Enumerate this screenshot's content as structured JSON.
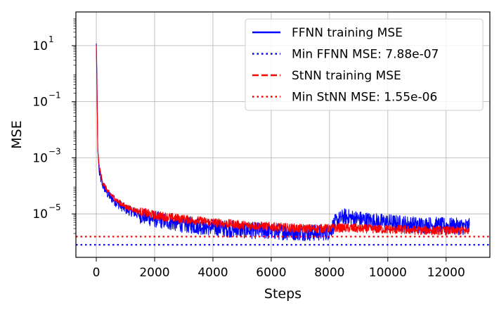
{
  "chart_data": {
    "type": "line",
    "xlabel": "Steps",
    "ylabel": "MSE",
    "xlim": [
      -700,
      13500
    ],
    "ylim_log10": [
      -6.55,
      2.2
    ],
    "y_scale": "log",
    "grid": true,
    "legend_placement": "top-right",
    "x_ticks": [
      {
        "value": 0,
        "label": "0"
      },
      {
        "value": 2000,
        "label": "2000"
      },
      {
        "value": 4000,
        "label": "4000"
      },
      {
        "value": 6000,
        "label": "6000"
      },
      {
        "value": 8000,
        "label": "8000"
      },
      {
        "value": 10000,
        "label": "10000"
      },
      {
        "value": 12000,
        "label": "12000"
      }
    ],
    "y_ticks": [
      {
        "log10": 1,
        "base": "10",
        "exp": "1"
      },
      {
        "log10": -1,
        "base": "10",
        "exp": "−1"
      },
      {
        "log10": -3,
        "base": "10",
        "exp": "−3"
      },
      {
        "log10": -5,
        "base": "10",
        "exp": "−5"
      }
    ],
    "series": [
      {
        "name": "FFNN training MSE",
        "color": "#0000ff",
        "style": "solid",
        "points": [
          [
            0,
            12
          ],
          [
            20,
            1
          ],
          [
            50,
            0.002
          ],
          [
            100,
            0.0003
          ],
          [
            200,
            0.00012
          ],
          [
            400,
            5e-05
          ],
          [
            700,
            2.5e-05
          ],
          [
            1000,
            1.5e-05
          ],
          [
            1500,
            9e-06
          ],
          [
            2000,
            6.5e-06
          ],
          [
            3000,
            4.2e-06
          ],
          [
            4000,
            3.2e-06
          ],
          [
            5000,
            2.7e-06
          ],
          [
            6000,
            2.4e-06
          ],
          [
            7000,
            2.2e-06
          ],
          [
            7500,
            2.1e-06
          ],
          [
            8000,
            2.3e-06
          ],
          [
            8200,
            5e-06
          ],
          [
            8500,
            8e-06
          ],
          [
            9000,
            6.5e-06
          ],
          [
            9500,
            5.5e-06
          ],
          [
            10000,
            5e-06
          ],
          [
            10500,
            4.5e-06
          ],
          [
            11000,
            4e-06
          ],
          [
            11500,
            4e-06
          ],
          [
            12000,
            3.7e-06
          ],
          [
            12800,
            3.5e-06
          ]
        ],
        "noise_log10": 0.3
      },
      {
        "name": "StNN training MSE",
        "color": "#ff0000",
        "style": "dashed",
        "points": [
          [
            0,
            10
          ],
          [
            20,
            0.5
          ],
          [
            50,
            0.002
          ],
          [
            100,
            0.0005
          ],
          [
            200,
            0.00015
          ],
          [
            400,
            6e-05
          ],
          [
            700,
            3e-05
          ],
          [
            1000,
            1.8e-05
          ],
          [
            1500,
            1.2e-05
          ],
          [
            2000,
            9e-06
          ],
          [
            3000,
            6.5e-06
          ],
          [
            4000,
            5e-06
          ],
          [
            5000,
            4e-06
          ],
          [
            6000,
            3.5e-06
          ],
          [
            7000,
            3e-06
          ],
          [
            8000,
            3e-06
          ],
          [
            8200,
            3.2e-06
          ],
          [
            9000,
            3e-06
          ],
          [
            10000,
            2.8e-06
          ],
          [
            11000,
            2.6e-06
          ],
          [
            12000,
            2.5e-06
          ],
          [
            12800,
            2.5e-06
          ]
        ],
        "noise_log10": 0.16
      }
    ],
    "hlines": [
      {
        "name": "Min FFNN MSE: 7.88e-07",
        "value": 7.88e-07,
        "color": "#0000ff",
        "style": "dotted"
      },
      {
        "name": "Min StNN MSE: 1.55e-06",
        "value": 1.55e-06,
        "color": "#ff0000",
        "style": "dotted"
      }
    ]
  }
}
